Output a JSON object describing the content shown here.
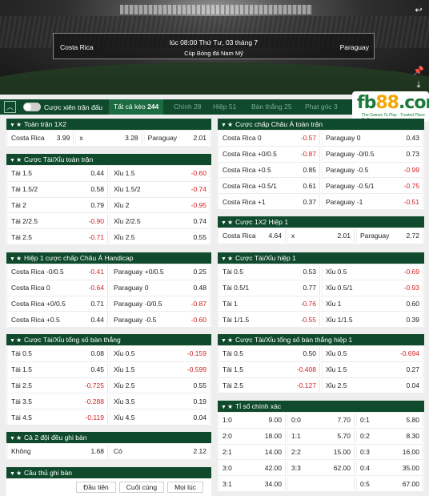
{
  "match": {
    "home": "Costa Rica",
    "away": "Paraguay",
    "time": "lúc 08:00 Thứ Tư, 03 tháng 7",
    "league": "Cúp Bóng đá Nam Mỹ"
  },
  "toolbar": {
    "combo_label": "Cược xiên trận đấu",
    "tabs": [
      {
        "label": "Tất cả kèo",
        "count": "244"
      },
      {
        "label": "Chính",
        "count": "28"
      },
      {
        "label": "Hiệp",
        "count": "51"
      },
      {
        "label": "Bàn thắng",
        "count": "25"
      },
      {
        "label": "Phạt góc",
        "count": "3"
      }
    ]
  },
  "logo": {
    "text": "fb88.com",
    "tag": "The Games To Play · Trusted Place To Bet"
  },
  "colors": {
    "header": "#0f4a2c",
    "negative": "#d21f1f"
  },
  "icons": [
    "back-icon",
    "pin-icon",
    "download-icon",
    "collapse-all-icon",
    "caret-down-icon",
    "star-icon"
  ],
  "panels": {
    "p1": {
      "title": "Toàn trận 1X2",
      "rows": [
        [
          [
            "Costa Rica",
            "3.99"
          ],
          [
            "x",
            "3.28"
          ],
          [
            "Paraguay",
            "2.01"
          ]
        ]
      ]
    },
    "p2": {
      "title": "Cược Tài/Xỉu toàn trận",
      "rows": [
        [
          [
            "Tài 1.5",
            "0.44"
          ],
          [
            "Xỉu 1.5",
            "-0.60"
          ]
        ],
        [
          [
            "Tài 1.5/2",
            "0.58"
          ],
          [
            "Xỉu 1.5/2",
            "-0.74"
          ]
        ],
        [
          [
            "Tài 2",
            "0.79"
          ],
          [
            "Xỉu 2",
            "-0.95"
          ]
        ],
        [
          [
            "Tài 2/2.5",
            "-0.90"
          ],
          [
            "Xỉu 2/2.5",
            "0.74"
          ]
        ],
        [
          [
            "Tài 2.5",
            "-0.71"
          ],
          [
            "Xỉu 2.5",
            "0.55"
          ]
        ]
      ]
    },
    "p3": {
      "title": "Hiệp 1 cược chấp Châu Á Handicap",
      "rows": [
        [
          [
            "Costa Rica -0/0.5",
            "-0.41"
          ],
          [
            "Paraguay +0/0.5",
            "0.25"
          ]
        ],
        [
          [
            "Costa Rica 0",
            "-0.64"
          ],
          [
            "Paraguay 0",
            "0.48"
          ]
        ],
        [
          [
            "Costa Rica +0/0.5",
            "0.71"
          ],
          [
            "Paraguay -0/0.5",
            "-0.87"
          ]
        ],
        [
          [
            "Costa Rica +0.5",
            "0.44"
          ],
          [
            "Paraguay -0.5",
            "-0.60"
          ]
        ]
      ]
    },
    "p4": {
      "title": "Cược Tài/Xỉu tổng số bàn thắng",
      "rows": [
        [
          [
            "Tài 0.5",
            "0.08"
          ],
          [
            "Xỉu 0.5",
            "-0.159"
          ]
        ],
        [
          [
            "Tài 1.5",
            "0.45"
          ],
          [
            "Xỉu 1.5",
            "-0.599"
          ]
        ],
        [
          [
            "Tài 2.5",
            "-0.725"
          ],
          [
            "Xỉu 2.5",
            "0.55"
          ]
        ],
        [
          [
            "Tài 3.5",
            "-0.288"
          ],
          [
            "Xỉu 3.5",
            "0.19"
          ]
        ],
        [
          [
            "Tài 4.5",
            "-0.119"
          ],
          [
            "Xỉu 4.5",
            "0.04"
          ]
        ]
      ]
    },
    "p5": {
      "title": "Cả 2 đội đều ghi bàn",
      "rows": [
        [
          [
            "Không",
            "1.68"
          ],
          [
            "Có",
            "2.12"
          ]
        ]
      ]
    },
    "p6": {
      "title": "Cầu thủ ghi bàn",
      "options": [
        "Đầu tiên",
        "Cuối cùng",
        "Mọi lúc"
      ]
    },
    "q1": {
      "title": "Cược chấp Châu Á toàn trận",
      "rows": [
        [
          [
            "Costa Rica 0",
            "-0.57"
          ],
          [
            "Paraguay 0",
            "0.43"
          ]
        ],
        [
          [
            "Costa Rica +0/0.5",
            "-0.87"
          ],
          [
            "Paraguay -0/0.5",
            "0.73"
          ]
        ],
        [
          [
            "Costa Rica +0.5",
            "0.85"
          ],
          [
            "Paraguay -0.5",
            "-0.99"
          ]
        ],
        [
          [
            "Costa Rica +0.5/1",
            "0.61"
          ],
          [
            "Paraguay -0.5/1",
            "-0.75"
          ]
        ],
        [
          [
            "Costa Rica +1",
            "0.37"
          ],
          [
            "Paraguay -1",
            "-0.51"
          ]
        ]
      ]
    },
    "q2": {
      "title": "Cược 1X2 Hiệp 1",
      "rows": [
        [
          [
            "Costa Rica",
            "4.64"
          ],
          [
            "x",
            "2.01"
          ],
          [
            "Paraguay",
            "2.72"
          ]
        ]
      ]
    },
    "q3": {
      "title": "Cược Tài/Xỉu hiệp 1",
      "rows": [
        [
          [
            "Tài 0.5",
            "0.53"
          ],
          [
            "Xỉu 0.5",
            "-0.69"
          ]
        ],
        [
          [
            "Tài 0.5/1",
            "0.77"
          ],
          [
            "Xỉu 0.5/1",
            "-0.93"
          ]
        ],
        [
          [
            "Tài 1",
            "-0.76"
          ],
          [
            "Xỉu 1",
            "0.60"
          ]
        ],
        [
          [
            "Tài 1/1.5",
            "-0.55"
          ],
          [
            "Xỉu 1/1.5",
            "0.39"
          ]
        ]
      ]
    },
    "q4": {
      "title": "Cược Tài/Xỉu tổng số bàn thắng hiệp 1",
      "rows": [
        [
          [
            "Tài 0.5",
            "0.50"
          ],
          [
            "Xỉu 0.5",
            "-0.694"
          ]
        ],
        [
          [
            "Tài 1.5",
            "-0.408"
          ],
          [
            "Xỉu 1.5",
            "0.27"
          ]
        ],
        [
          [
            "Tài 2.5",
            "-0.127"
          ],
          [
            "Xỉu 2.5",
            "0.04"
          ]
        ]
      ]
    },
    "q5": {
      "title": "Tỉ số chính xác",
      "rows": [
        [
          [
            "1:0",
            "9.00"
          ],
          [
            "0:0",
            "7.70"
          ],
          [
            "0:1",
            "5.80"
          ]
        ],
        [
          [
            "2:0",
            "18.00"
          ],
          [
            "1:1",
            "5.70"
          ],
          [
            "0:2",
            "8.30"
          ]
        ],
        [
          [
            "2:1",
            "14.00"
          ],
          [
            "2:2",
            "15.00"
          ],
          [
            "0:3",
            "16.00"
          ]
        ],
        [
          [
            "3:0",
            "42.00"
          ],
          [
            "3:3",
            "62.00"
          ],
          [
            "0:4",
            "35.00"
          ]
        ],
        [
          [
            "3:1",
            "34.00"
          ],
          [
            "",
            ""
          ],
          [
            "0:5",
            "67.00"
          ]
        ]
      ]
    }
  }
}
